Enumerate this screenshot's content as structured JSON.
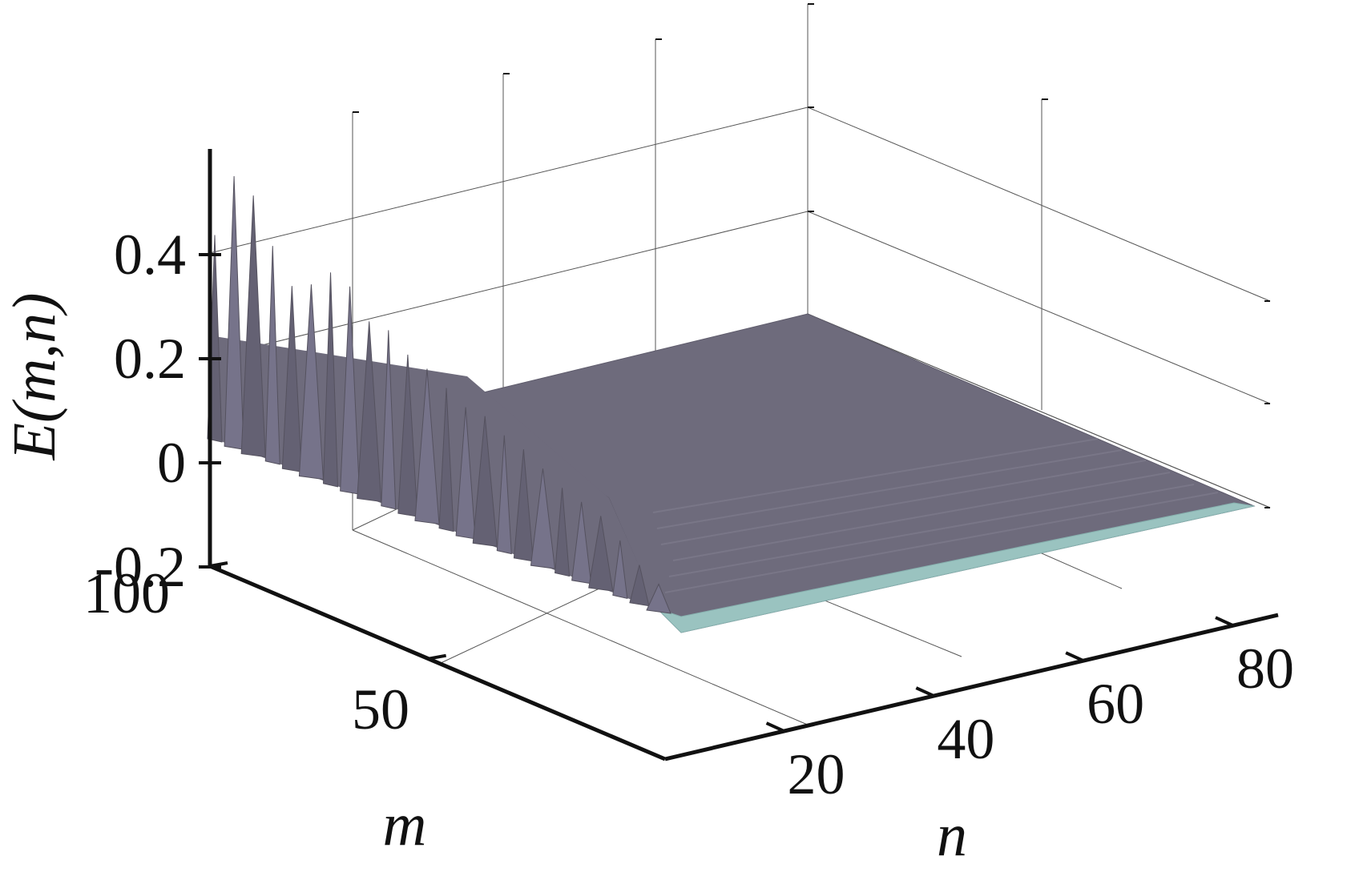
{
  "chart_data": {
    "type": "surface",
    "title": "",
    "zlabel": "E(m,n)",
    "xlabel": "n",
    "ylabel": "m",
    "z_ticks": [
      "-0.2",
      "0",
      "0.2",
      "0.4"
    ],
    "n_ticks": [
      "20",
      "40",
      "60",
      "80"
    ],
    "m_ticks": [
      "50",
      "100"
    ],
    "zlim": [
      -0.2,
      0.6
    ],
    "xlim": [
      0,
      80
    ],
    "ylim": [
      0,
      100
    ],
    "grid": true,
    "surface_colors": {
      "main": "#6e6b7c",
      "side": "#7c7a8e",
      "edge": "#9ac3c0"
    },
    "surface_summary": {
      "flat_region_value": 0.0,
      "description_values_at_m100_edge": "spikes along the m=100 edge reaching up to about 0.45 for small n, decaying toward 0 as n grows",
      "spike_peaks_along_m100": [
        {
          "n": 1,
          "E": 0.33
        },
        {
          "n": 2,
          "E": 0.46
        },
        {
          "n": 3,
          "E": 0.44
        },
        {
          "n": 4,
          "E": 0.36
        },
        {
          "n": 5,
          "E": 0.3
        },
        {
          "n": 6,
          "E": 0.32
        },
        {
          "n": 7,
          "E": 0.36
        },
        {
          "n": 8,
          "E": 0.35
        },
        {
          "n": 9,
          "E": 0.3
        },
        {
          "n": 10,
          "E": 0.3
        },
        {
          "n": 11,
          "E": 0.27
        },
        {
          "n": 12,
          "E": 0.26
        },
        {
          "n": 13,
          "E": 0.24
        },
        {
          "n": 14,
          "E": 0.22
        },
        {
          "n": 15,
          "E": 0.22
        },
        {
          "n": 16,
          "E": 0.2
        },
        {
          "n": 17,
          "E": 0.19
        },
        {
          "n": 18,
          "E": 0.17
        },
        {
          "n": 19,
          "E": 0.15
        },
        {
          "n": 20,
          "E": 0.14
        },
        {
          "n": 21,
          "E": 0.13
        },
        {
          "n": 22,
          "E": 0.1
        },
        {
          "n": 23,
          "E": 0.07
        },
        {
          "n": 24,
          "E": 0.05
        }
      ]
    }
  }
}
